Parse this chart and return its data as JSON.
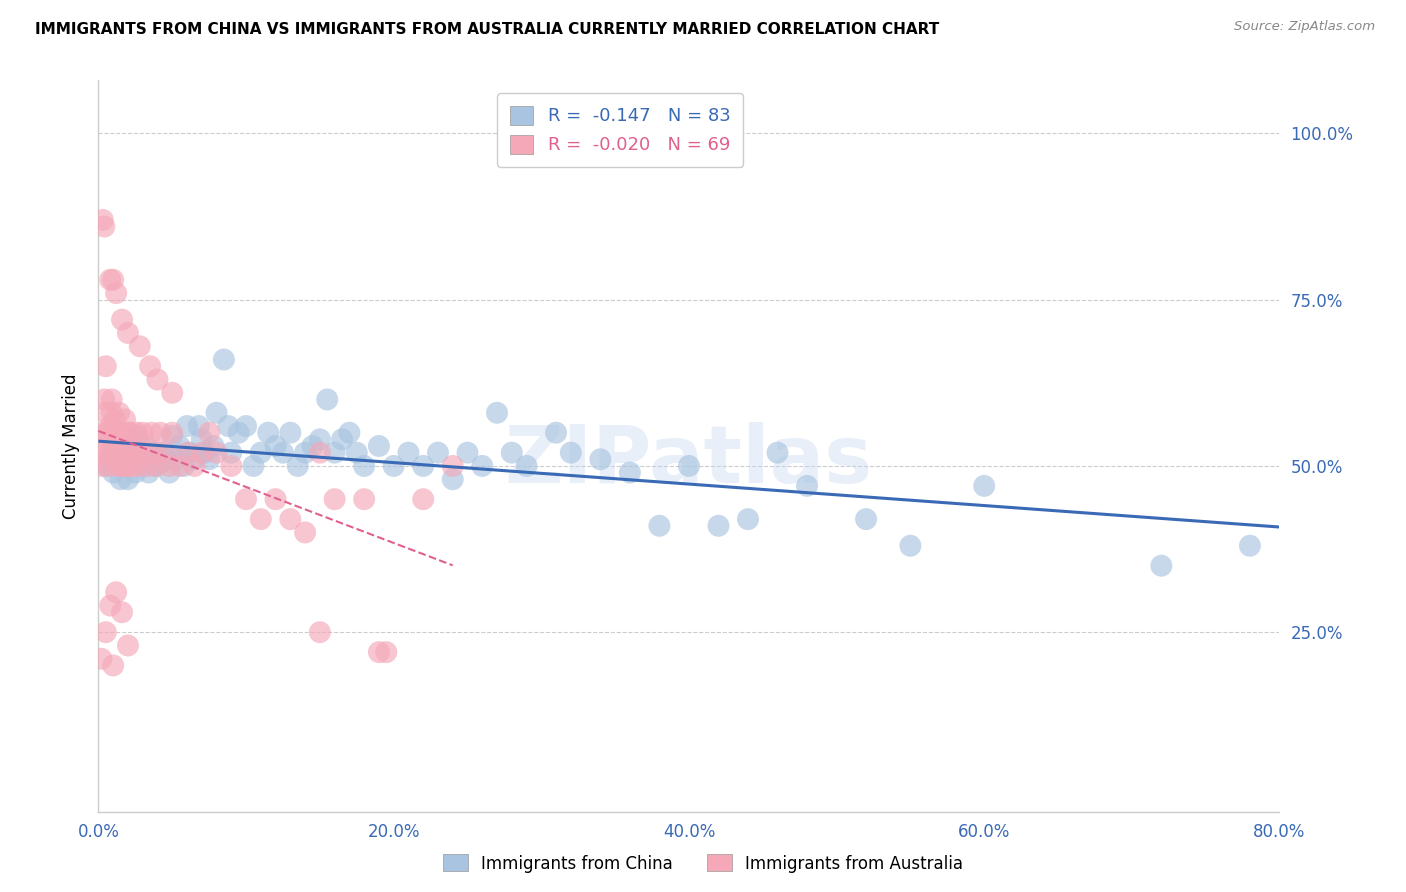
{
  "title": "IMMIGRANTS FROM CHINA VS IMMIGRANTS FROM AUSTRALIA CURRENTLY MARRIED CORRELATION CHART",
  "source": "Source: ZipAtlas.com",
  "ylabel": "Currently Married",
  "xlim": [
    0.0,
    0.8
  ],
  "ylim": [
    -0.02,
    1.08
  ],
  "xtick_labels": [
    "0.0%",
    "20.0%",
    "40.0%",
    "60.0%",
    "80.0%"
  ],
  "xtick_vals": [
    0.0,
    0.2,
    0.4,
    0.6,
    0.8
  ],
  "ytick_labels": [
    "25.0%",
    "50.0%",
    "75.0%",
    "100.0%"
  ],
  "ytick_vals": [
    0.25,
    0.5,
    0.75,
    1.0
  ],
  "china_R": -0.147,
  "china_N": 83,
  "australia_R": -0.02,
  "australia_N": 69,
  "china_color": "#a8c4e0",
  "australia_color": "#f4a8b8",
  "china_line_color": "#3a6ab5",
  "australia_line_color": "#e06090",
  "watermark": "ZIPatlas",
  "watermark_color": "#c8d8f0",
  "grid_color": "#cccccc",
  "china_x": [
    0.005,
    0.008,
    0.01,
    0.012,
    0.015,
    0.016,
    0.018,
    0.02,
    0.022,
    0.024,
    0.025,
    0.026,
    0.028,
    0.03,
    0.032,
    0.034,
    0.036,
    0.038,
    0.04,
    0.042,
    0.044,
    0.046,
    0.048,
    0.05,
    0.052,
    0.055,
    0.058,
    0.06,
    0.062,
    0.065,
    0.068,
    0.07,
    0.072,
    0.075,
    0.078,
    0.08,
    0.085,
    0.088,
    0.09,
    0.095,
    0.1,
    0.105,
    0.11,
    0.115,
    0.12,
    0.125,
    0.13,
    0.135,
    0.14,
    0.145,
    0.15,
    0.155,
    0.16,
    0.165,
    0.17,
    0.175,
    0.18,
    0.19,
    0.2,
    0.21,
    0.22,
    0.23,
    0.24,
    0.25,
    0.26,
    0.27,
    0.28,
    0.29,
    0.31,
    0.32,
    0.34,
    0.36,
    0.38,
    0.4,
    0.42,
    0.44,
    0.46,
    0.48,
    0.52,
    0.55,
    0.6,
    0.72,
    0.78
  ],
  "china_y": [
    0.5,
    0.51,
    0.49,
    0.52,
    0.48,
    0.5,
    0.515,
    0.48,
    0.51,
    0.505,
    0.49,
    0.545,
    0.51,
    0.5,
    0.53,
    0.49,
    0.51,
    0.5,
    0.52,
    0.505,
    0.515,
    0.51,
    0.49,
    0.545,
    0.51,
    0.53,
    0.5,
    0.56,
    0.52,
    0.51,
    0.56,
    0.54,
    0.52,
    0.51,
    0.53,
    0.58,
    0.66,
    0.56,
    0.52,
    0.55,
    0.56,
    0.5,
    0.52,
    0.55,
    0.53,
    0.52,
    0.55,
    0.5,
    0.52,
    0.53,
    0.54,
    0.6,
    0.52,
    0.54,
    0.55,
    0.52,
    0.5,
    0.53,
    0.5,
    0.52,
    0.5,
    0.52,
    0.48,
    0.52,
    0.5,
    0.58,
    0.52,
    0.5,
    0.55,
    0.52,
    0.51,
    0.49,
    0.41,
    0.5,
    0.41,
    0.42,
    0.52,
    0.47,
    0.42,
    0.38,
    0.47,
    0.35,
    0.38
  ],
  "australia_x": [
    0.002,
    0.003,
    0.004,
    0.004,
    0.005,
    0.005,
    0.006,
    0.006,
    0.007,
    0.007,
    0.008,
    0.008,
    0.009,
    0.009,
    0.01,
    0.01,
    0.011,
    0.012,
    0.012,
    0.013,
    0.013,
    0.014,
    0.014,
    0.015,
    0.015,
    0.016,
    0.016,
    0.017,
    0.018,
    0.018,
    0.019,
    0.02,
    0.02,
    0.021,
    0.022,
    0.023,
    0.024,
    0.025,
    0.026,
    0.027,
    0.028,
    0.03,
    0.032,
    0.034,
    0.036,
    0.038,
    0.04,
    0.042,
    0.045,
    0.048,
    0.05,
    0.055,
    0.06,
    0.065,
    0.07,
    0.075,
    0.08,
    0.09,
    0.1,
    0.11,
    0.12,
    0.13,
    0.14,
    0.15,
    0.16,
    0.18,
    0.19,
    0.22,
    0.24
  ],
  "australia_y": [
    0.5,
    0.52,
    0.55,
    0.6,
    0.65,
    0.58,
    0.52,
    0.55,
    0.5,
    0.54,
    0.52,
    0.56,
    0.58,
    0.6,
    0.55,
    0.52,
    0.57,
    0.55,
    0.52,
    0.5,
    0.55,
    0.52,
    0.58,
    0.5,
    0.55,
    0.52,
    0.5,
    0.55,
    0.52,
    0.57,
    0.5,
    0.52,
    0.55,
    0.5,
    0.55,
    0.52,
    0.5,
    0.52,
    0.55,
    0.52,
    0.5,
    0.55,
    0.52,
    0.5,
    0.55,
    0.52,
    0.5,
    0.55,
    0.52,
    0.5,
    0.55,
    0.5,
    0.52,
    0.5,
    0.52,
    0.55,
    0.52,
    0.5,
    0.45,
    0.42,
    0.45,
    0.42,
    0.4,
    0.52,
    0.45,
    0.45,
    0.22,
    0.45,
    0.5
  ],
  "australia_y_extra": [
    0.87,
    0.86,
    0.78,
    0.78,
    0.76,
    0.72,
    0.7,
    0.68,
    0.65,
    0.63,
    0.61,
    0.21,
    0.25,
    0.29,
    0.31,
    0.28,
    0.25,
    0.22,
    0.2,
    0.23
  ],
  "australia_x_extra": [
    0.003,
    0.004,
    0.008,
    0.01,
    0.012,
    0.016,
    0.02,
    0.028,
    0.035,
    0.04,
    0.05,
    0.002,
    0.005,
    0.008,
    0.012,
    0.016,
    0.15,
    0.195,
    0.01,
    0.02
  ]
}
